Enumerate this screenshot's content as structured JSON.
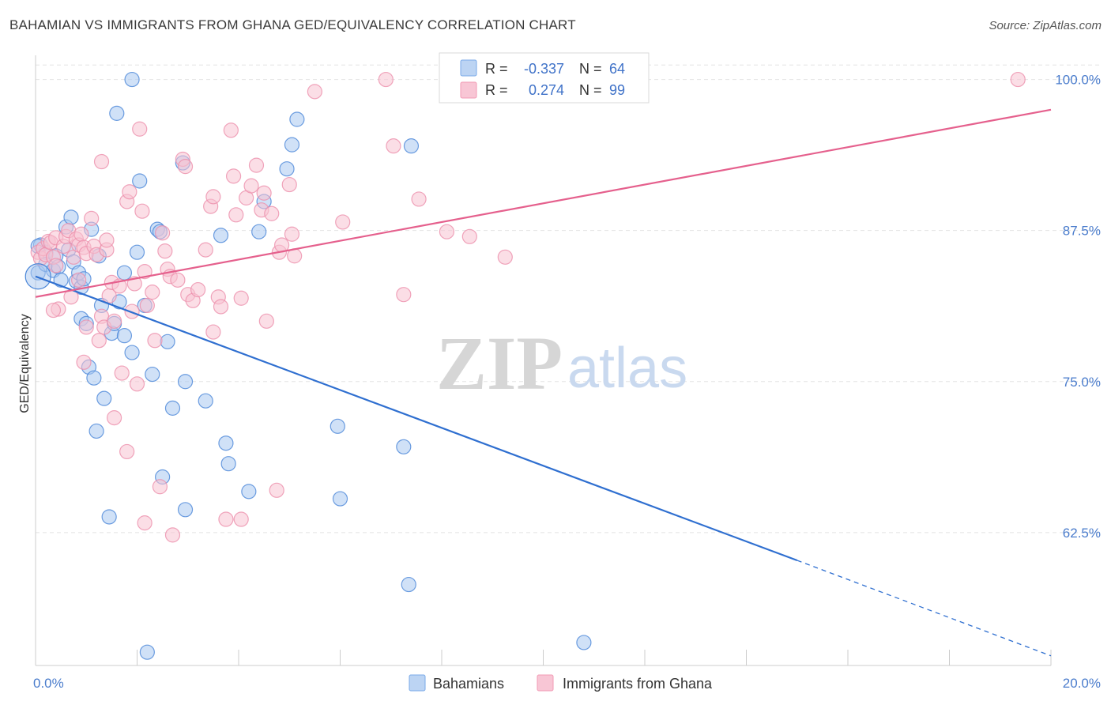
{
  "title": "BAHAMIAN VS IMMIGRANTS FROM GHANA GED/EQUIVALENCY CORRELATION CHART",
  "source": "Source: ZipAtlas.com",
  "watermark": {
    "zip": "ZIP",
    "atlas": "atlas"
  },
  "legend": {
    "r_label": "R =",
    "n_label": "N =",
    "series": [
      {
        "r": "-0.337",
        "n": "64",
        "color": "#7aaae8",
        "fill": "#bcd4f3"
      },
      {
        "r": "0.274",
        "n": "99",
        "color": "#f29bb5",
        "fill": "#f8c6d5"
      }
    ]
  },
  "bottom_legend": [
    "Bahamians",
    "Immigrants from Ghana"
  ],
  "chart_data": {
    "type": "scatter",
    "ylabel": "GED/Equivalency",
    "xlabel": "",
    "xlim": [
      0.0,
      20.0
    ],
    "ylim": [
      51.5,
      102.0
    ],
    "x_tick_labels": [
      {
        "value": 0.0,
        "label": "0.0%"
      },
      {
        "value": 20.0,
        "label": "20.0%"
      }
    ],
    "y_tick_labels": [
      {
        "value": 100.0,
        "label": "100.0%"
      },
      {
        "value": 87.5,
        "label": "87.5%"
      },
      {
        "value": 75.0,
        "label": "75.0%"
      },
      {
        "value": 62.5,
        "label": "62.5%"
      }
    ],
    "grid": true,
    "series": [
      {
        "name": "Bahamians",
        "color": "#4a86d8",
        "fill": "#a9c8f0",
        "trend": {
          "x0": 0.0,
          "y0": 83.7,
          "x1": 15.0,
          "y1": 60.2,
          "dash_to_x": 20.0,
          "dash_to_y": 52.3,
          "color": "#2f6fd0"
        },
        "points": [
          [
            0.05,
            84.0
          ],
          [
            0.1,
            86.3
          ],
          [
            0.2,
            85.7
          ],
          [
            0.2,
            84.7
          ],
          [
            0.35,
            84.2
          ],
          [
            0.4,
            85.4
          ],
          [
            0.45,
            84.5
          ],
          [
            0.5,
            83.4
          ],
          [
            0.6,
            87.8
          ],
          [
            0.65,
            85.9
          ],
          [
            0.7,
            88.6
          ],
          [
            0.75,
            84.9
          ],
          [
            0.8,
            83.3
          ],
          [
            0.85,
            84.0
          ],
          [
            0.9,
            82.8
          ],
          [
            0.95,
            83.5
          ],
          [
            0.9,
            80.2
          ],
          [
            1.0,
            79.8
          ],
          [
            1.05,
            76.2
          ],
          [
            1.1,
            87.6
          ],
          [
            1.15,
            75.3
          ],
          [
            1.25,
            85.4
          ],
          [
            1.2,
            70.9
          ],
          [
            1.35,
            73.6
          ],
          [
            1.3,
            81.3
          ],
          [
            1.5,
            79.0
          ],
          [
            1.55,
            79.8
          ],
          [
            1.65,
            81.6
          ],
          [
            1.6,
            97.2
          ],
          [
            1.75,
            78.8
          ],
          [
            1.75,
            84.0
          ],
          [
            1.9,
            77.4
          ],
          [
            1.9,
            100.0
          ],
          [
            2.0,
            85.7
          ],
          [
            2.05,
            91.6
          ],
          [
            2.15,
            81.3
          ],
          [
            2.2,
            52.6
          ],
          [
            2.3,
            75.6
          ],
          [
            2.4,
            87.6
          ],
          [
            2.45,
            87.4
          ],
          [
            2.5,
            67.1
          ],
          [
            2.6,
            78.3
          ],
          [
            2.7,
            72.8
          ],
          [
            2.9,
            93.1
          ],
          [
            2.95,
            75.0
          ],
          [
            2.95,
            64.4
          ],
          [
            3.35,
            73.4
          ],
          [
            3.65,
            87.1
          ],
          [
            3.75,
            69.9
          ],
          [
            3.8,
            68.2
          ],
          [
            4.2,
            65.9
          ],
          [
            4.4,
            87.4
          ],
          [
            4.5,
            89.9
          ],
          [
            4.95,
            92.6
          ],
          [
            5.05,
            94.6
          ],
          [
            5.15,
            96.7
          ],
          [
            5.95,
            71.3
          ],
          [
            6.0,
            65.3
          ],
          [
            7.25,
            69.6
          ],
          [
            7.35,
            58.2
          ],
          [
            7.4,
            94.5
          ],
          [
            10.8,
            53.4
          ],
          [
            1.45,
            63.8
          ],
          [
            0.05,
            86.2
          ]
        ]
      },
      {
        "name": "Immigrants from Ghana",
        "color": "#ec8fab",
        "fill": "#f7c2d2",
        "trend": {
          "x0": 0.0,
          "y0": 82.0,
          "x1": 20.0,
          "y1": 97.5,
          "color": "#e5608d"
        },
        "points": [
          [
            0.05,
            85.7
          ],
          [
            0.1,
            85.2
          ],
          [
            0.15,
            86.0
          ],
          [
            0.2,
            85.5
          ],
          [
            0.25,
            86.6
          ],
          [
            0.3,
            86.5
          ],
          [
            0.35,
            85.3
          ],
          [
            0.4,
            84.6
          ],
          [
            0.4,
            86.9
          ],
          [
            0.45,
            81.0
          ],
          [
            0.55,
            86.2
          ],
          [
            0.6,
            87.0
          ],
          [
            0.65,
            87.5
          ],
          [
            0.7,
            82.0
          ],
          [
            0.75,
            85.3
          ],
          [
            0.8,
            86.8
          ],
          [
            0.85,
            86.3
          ],
          [
            0.85,
            83.4
          ],
          [
            0.9,
            87.2
          ],
          [
            0.95,
            86.1
          ],
          [
            1.0,
            85.6
          ],
          [
            0.95,
            76.6
          ],
          [
            1.0,
            79.5
          ],
          [
            1.1,
            88.5
          ],
          [
            1.15,
            86.2
          ],
          [
            1.2,
            85.5
          ],
          [
            1.25,
            78.4
          ],
          [
            1.3,
            93.2
          ],
          [
            1.3,
            80.4
          ],
          [
            1.35,
            79.5
          ],
          [
            1.4,
            85.9
          ],
          [
            1.4,
            86.7
          ],
          [
            1.45,
            82.1
          ],
          [
            1.5,
            83.2
          ],
          [
            1.55,
            80.0
          ],
          [
            1.55,
            72.0
          ],
          [
            1.65,
            82.9
          ],
          [
            1.7,
            75.7
          ],
          [
            1.8,
            89.9
          ],
          [
            1.8,
            69.2
          ],
          [
            1.85,
            90.7
          ],
          [
            1.9,
            80.8
          ],
          [
            1.95,
            83.1
          ],
          [
            2.0,
            74.8
          ],
          [
            2.05,
            95.9
          ],
          [
            2.1,
            89.1
          ],
          [
            2.15,
            84.1
          ],
          [
            2.15,
            63.3
          ],
          [
            2.2,
            81.3
          ],
          [
            2.3,
            82.4
          ],
          [
            2.35,
            78.4
          ],
          [
            2.45,
            66.3
          ],
          [
            2.5,
            87.3
          ],
          [
            2.55,
            85.8
          ],
          [
            2.6,
            84.3
          ],
          [
            2.65,
            83.7
          ],
          [
            2.7,
            62.3
          ],
          [
            2.8,
            83.4
          ],
          [
            2.9,
            93.4
          ],
          [
            2.95,
            92.8
          ],
          [
            3.0,
            82.2
          ],
          [
            3.1,
            81.7
          ],
          [
            3.2,
            82.6
          ],
          [
            3.35,
            85.9
          ],
          [
            3.45,
            89.5
          ],
          [
            3.5,
            90.3
          ],
          [
            3.5,
            79.1
          ],
          [
            3.6,
            82.0
          ],
          [
            3.65,
            81.2
          ],
          [
            3.75,
            63.6
          ],
          [
            3.85,
            95.8
          ],
          [
            3.9,
            92.0
          ],
          [
            3.95,
            88.8
          ],
          [
            4.05,
            81.9
          ],
          [
            4.05,
            63.6
          ],
          [
            4.15,
            90.2
          ],
          [
            4.25,
            91.2
          ],
          [
            4.35,
            92.9
          ],
          [
            4.45,
            89.2
          ],
          [
            4.55,
            80.0
          ],
          [
            4.5,
            90.6
          ],
          [
            4.65,
            88.9
          ],
          [
            4.75,
            66.0
          ],
          [
            4.8,
            85.7
          ],
          [
            4.85,
            86.3
          ],
          [
            5.0,
            91.3
          ],
          [
            5.05,
            87.2
          ],
          [
            5.1,
            85.4
          ],
          [
            5.5,
            99.0
          ],
          [
            6.05,
            88.2
          ],
          [
            6.9,
            100.0
          ],
          [
            7.05,
            94.5
          ],
          [
            7.25,
            82.2
          ],
          [
            7.55,
            90.1
          ],
          [
            8.1,
            87.4
          ],
          [
            8.55,
            87.0
          ],
          [
            9.25,
            85.3
          ],
          [
            19.35,
            100.0
          ],
          [
            0.35,
            80.9
          ]
        ]
      }
    ]
  }
}
